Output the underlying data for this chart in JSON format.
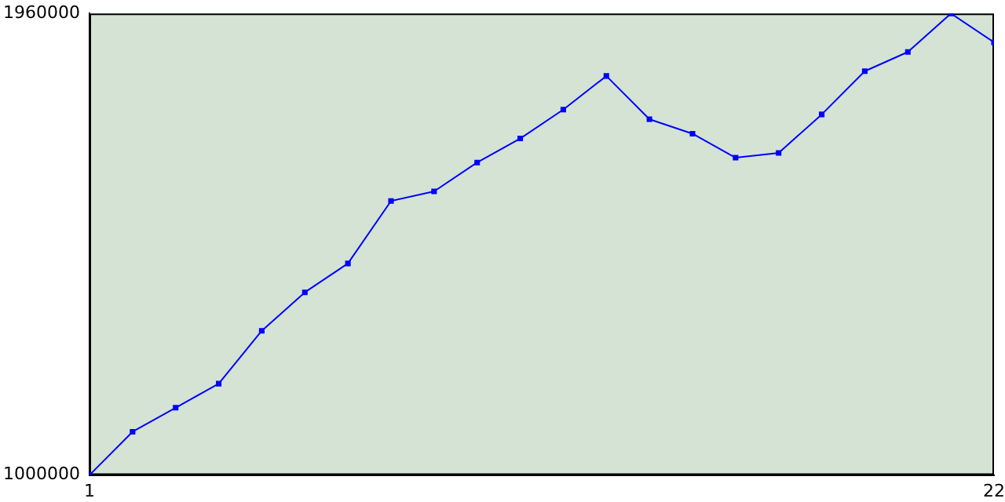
{
  "chart_data": {
    "type": "line",
    "x": [
      1,
      2,
      3,
      4,
      5,
      6,
      7,
      8,
      9,
      10,
      11,
      12,
      13,
      14,
      15,
      16,
      17,
      18,
      19,
      20,
      21,
      22
    ],
    "series": [
      {
        "color": "#0000ff",
        "values": [
          1000000,
          1090000,
          1140000,
          1190000,
          1300000,
          1380000,
          1440000,
          1570000,
          1590000,
          1650000,
          1700000,
          1760000,
          1830000,
          1740000,
          1710000,
          1660000,
          1670000,
          1750000,
          1840000,
          1880000,
          1960000,
          1900000
        ]
      }
    ],
    "xlim": [
      1,
      22
    ],
    "xticks": [
      1,
      22
    ],
    "ylim": [
      1000000,
      1960000
    ],
    "yticks": [
      1000000,
      1960000
    ],
    "grid": false,
    "legend": false,
    "marker": "square",
    "line_style": "solid"
  }
}
